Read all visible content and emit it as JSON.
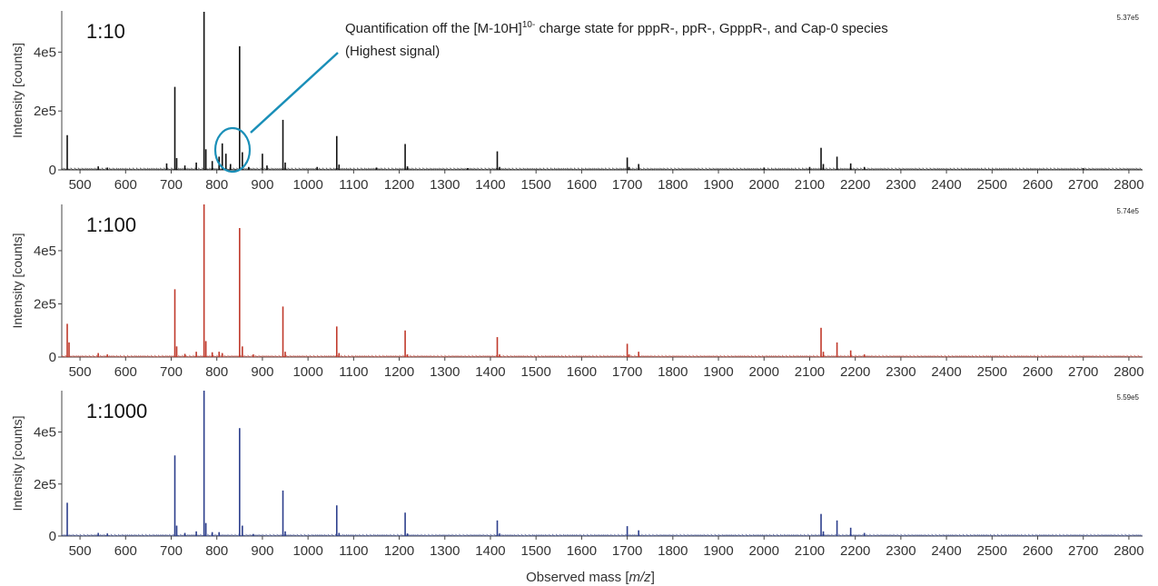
{
  "annotation": {
    "line1_pre": "Quantification off the [M-10H]",
    "line1_sup": "10-",
    "line1_post": " charge state for pppR-, ppR-, GpppR-, and Cap-0 species",
    "line2": "(Highest signal)",
    "color": "#1a8fb8"
  },
  "xlabel_pre": "Observed mass [",
  "xlabel_italic": "m/z",
  "xlabel_post": "]",
  "chart_data": [
    {
      "type": "line",
      "label": "1:10",
      "max_label": "5.37e5",
      "color": "#111111",
      "ylabel": "Intensity [counts]",
      "xlim": [
        460,
        2830
      ],
      "ylim": [
        0,
        540000
      ],
      "yticks": [
        0,
        200000,
        400000
      ],
      "ytick_labels": [
        "0",
        "2e5",
        "4e5"
      ],
      "xticks": [
        500,
        600,
        700,
        800,
        900,
        1000,
        1100,
        1200,
        1300,
        1400,
        1500,
        1600,
        1700,
        1800,
        1900,
        2000,
        2100,
        2200,
        2300,
        2400,
        2500,
        2600,
        2700,
        2800
      ],
      "peaks": [
        [
          472,
          118000
        ],
        [
          540,
          12000
        ],
        [
          560,
          8000
        ],
        [
          690,
          22000
        ],
        [
          708,
          282000
        ],
        [
          712,
          40000
        ],
        [
          730,
          15000
        ],
        [
          755,
          25000
        ],
        [
          772,
          537000
        ],
        [
          776,
          70000
        ],
        [
          790,
          30000
        ],
        [
          805,
          45000
        ],
        [
          812,
          90000
        ],
        [
          820,
          55000
        ],
        [
          830,
          20000
        ],
        [
          850,
          420000
        ],
        [
          856,
          60000
        ],
        [
          870,
          10000
        ],
        [
          900,
          55000
        ],
        [
          910,
          15000
        ],
        [
          945,
          170000
        ],
        [
          950,
          25000
        ],
        [
          1020,
          10000
        ],
        [
          1063,
          115000
        ],
        [
          1068,
          18000
        ],
        [
          1150,
          8000
        ],
        [
          1213,
          88000
        ],
        [
          1218,
          12000
        ],
        [
          1350,
          6000
        ],
        [
          1415,
          63000
        ],
        [
          1420,
          10000
        ],
        [
          1700,
          42000
        ],
        [
          1704,
          10000
        ],
        [
          1725,
          20000
        ],
        [
          2000,
          8000
        ],
        [
          2100,
          10000
        ],
        [
          2125,
          75000
        ],
        [
          2130,
          20000
        ],
        [
          2160,
          45000
        ],
        [
          2190,
          22000
        ],
        [
          2220,
          10000
        ],
        [
          2700,
          6000
        ]
      ]
    },
    {
      "type": "line",
      "label": "1:100",
      "max_label": "5.74e5",
      "color": "#c0392b",
      "ylabel": "Intensity [counts]",
      "xlim": [
        460,
        2830
      ],
      "ylim": [
        0,
        574000
      ],
      "yticks": [
        0,
        200000,
        400000
      ],
      "ytick_labels": [
        "0",
        "2e5",
        "4e5"
      ],
      "xticks": [
        500,
        600,
        700,
        800,
        900,
        1000,
        1100,
        1200,
        1300,
        1400,
        1500,
        1600,
        1700,
        1800,
        1900,
        2000,
        2100,
        2200,
        2300,
        2400,
        2500,
        2600,
        2700,
        2800
      ],
      "peaks": [
        [
          472,
          125000
        ],
        [
          476,
          55000
        ],
        [
          540,
          15000
        ],
        [
          560,
          10000
        ],
        [
          708,
          255000
        ],
        [
          712,
          40000
        ],
        [
          730,
          12000
        ],
        [
          755,
          20000
        ],
        [
          772,
          574000
        ],
        [
          776,
          60000
        ],
        [
          790,
          18000
        ],
        [
          805,
          20000
        ],
        [
          812,
          15000
        ],
        [
          850,
          485000
        ],
        [
          856,
          40000
        ],
        [
          880,
          10000
        ],
        [
          945,
          190000
        ],
        [
          950,
          20000
        ],
        [
          1063,
          115000
        ],
        [
          1068,
          15000
        ],
        [
          1213,
          100000
        ],
        [
          1218,
          10000
        ],
        [
          1415,
          75000
        ],
        [
          1420,
          10000
        ],
        [
          1700,
          50000
        ],
        [
          1704,
          10000
        ],
        [
          1725,
          20000
        ],
        [
          2125,
          110000
        ],
        [
          2130,
          20000
        ],
        [
          2160,
          55000
        ],
        [
          2190,
          25000
        ],
        [
          2220,
          10000
        ]
      ]
    },
    {
      "type": "line",
      "label": "1:1000",
      "max_label": "5.59e5",
      "color": "#2c3e8c",
      "ylabel": "Intensity [counts]",
      "xlim": [
        460,
        2830
      ],
      "ylim": [
        0,
        559000
      ],
      "yticks": [
        0,
        200000,
        400000
      ],
      "ytick_labels": [
        "0",
        "2e5",
        "4e5"
      ],
      "xticks": [
        500,
        600,
        700,
        800,
        900,
        1000,
        1100,
        1200,
        1300,
        1400,
        1500,
        1600,
        1700,
        1800,
        1900,
        2000,
        2100,
        2200,
        2300,
        2400,
        2500,
        2600,
        2700,
        2800
      ],
      "peaks": [
        [
          472,
          128000
        ],
        [
          540,
          12000
        ],
        [
          560,
          10000
        ],
        [
          708,
          310000
        ],
        [
          712,
          40000
        ],
        [
          730,
          12000
        ],
        [
          755,
          18000
        ],
        [
          772,
          559000
        ],
        [
          776,
          50000
        ],
        [
          790,
          15000
        ],
        [
          805,
          15000
        ],
        [
          850,
          415000
        ],
        [
          856,
          40000
        ],
        [
          880,
          8000
        ],
        [
          945,
          175000
        ],
        [
          950,
          18000
        ],
        [
          1063,
          118000
        ],
        [
          1068,
          12000
        ],
        [
          1213,
          90000
        ],
        [
          1218,
          10000
        ],
        [
          1415,
          60000
        ],
        [
          1420,
          10000
        ],
        [
          1700,
          38000
        ],
        [
          1725,
          22000
        ],
        [
          2125,
          85000
        ],
        [
          2130,
          18000
        ],
        [
          2160,
          60000
        ],
        [
          2190,
          32000
        ],
        [
          2220,
          12000
        ]
      ]
    }
  ]
}
